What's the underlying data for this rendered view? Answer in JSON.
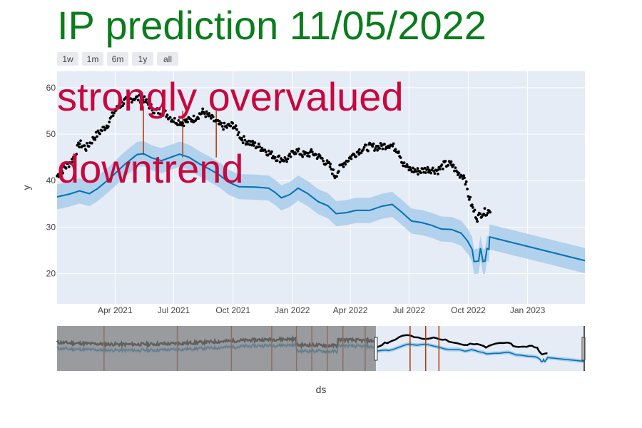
{
  "title": "IP prediction 11/05/2022",
  "annotations": [
    "strongly overvalued",
    "downtrend"
  ],
  "colors": {
    "title": "#0a7c1c",
    "annotation": "#c8073e",
    "plot_bg": "#e5ecf6",
    "grid": "#ffffff",
    "forecast_line": "#0072b2",
    "uncertainty_band": "#a9cdea",
    "actual_points": "#000000",
    "changepoints": "#b03a00",
    "slider_outside": "#808080"
  },
  "range_selector": {
    "buttons": [
      "1w",
      "1m",
      "6m",
      "1y",
      "all"
    ]
  },
  "chart_data": {
    "type": "line",
    "xlabel": "ds",
    "ylabel": "y",
    "x_range": [
      "2021-01-01",
      "2023-03-31"
    ],
    "y_range": [
      13.5,
      63.5
    ],
    "y_ticks": [
      20,
      30,
      40,
      50,
      60
    ],
    "x_ticks": [
      {
        "date": "2021-04-01",
        "label": "Apr 2021"
      },
      {
        "date": "2021-07-01",
        "label": "Jul 2021"
      },
      {
        "date": "2021-10-01",
        "label": "Oct 2021"
      },
      {
        "date": "2022-01-01",
        "label": "Jan 2022"
      },
      {
        "date": "2022-04-01",
        "label": "Apr 2022"
      },
      {
        "date": "2022-07-01",
        "label": "Jul 2022"
      },
      {
        "date": "2022-10-01",
        "label": "Oct 2022"
      },
      {
        "date": "2023-01-01",
        "label": "Jan 2023"
      }
    ],
    "grid": true,
    "series": [
      {
        "kind": "forecast",
        "points": [
          [
            "2021-01-01",
            36.5
          ],
          [
            "2021-01-20",
            37.1
          ],
          [
            "2021-02-05",
            37.8
          ],
          [
            "2021-02-20",
            37.2
          ],
          [
            "2021-03-05",
            38.3
          ],
          [
            "2021-03-25",
            40.6
          ],
          [
            "2021-04-15",
            43.4
          ],
          [
            "2021-05-05",
            45.6
          ],
          [
            "2021-05-15",
            45.8
          ],
          [
            "2021-05-28",
            44.9
          ],
          [
            "2021-06-12",
            44.3
          ],
          [
            "2021-06-28",
            45.1
          ],
          [
            "2021-07-10",
            45.7
          ],
          [
            "2021-07-25",
            45.0
          ],
          [
            "2021-08-10",
            43.6
          ],
          [
            "2021-08-25",
            42.5
          ],
          [
            "2021-09-10",
            41.2
          ],
          [
            "2021-09-25",
            39.6
          ],
          [
            "2021-10-10",
            38.7
          ],
          [
            "2021-11-05",
            38.6
          ],
          [
            "2021-11-25",
            38.4
          ],
          [
            "2021-12-05",
            37.5
          ],
          [
            "2021-12-15",
            36.3
          ],
          [
            "2021-12-28",
            37.0
          ],
          [
            "2022-01-10",
            38.4
          ],
          [
            "2022-01-25",
            37.2
          ],
          [
            "2022-02-10",
            35.5
          ],
          [
            "2022-02-25",
            34.6
          ],
          [
            "2022-03-10",
            32.9
          ],
          [
            "2022-03-25",
            33.1
          ],
          [
            "2022-04-10",
            33.6
          ],
          [
            "2022-05-01",
            33.6
          ],
          [
            "2022-05-20",
            34.5
          ],
          [
            "2022-06-05",
            34.9
          ],
          [
            "2022-06-20",
            33.2
          ],
          [
            "2022-07-05",
            31.3
          ],
          [
            "2022-07-20",
            31.0
          ],
          [
            "2022-08-05",
            30.4
          ],
          [
            "2022-08-20",
            29.6
          ],
          [
            "2022-09-05",
            29.5
          ],
          [
            "2022-09-20",
            28.7
          ],
          [
            "2022-09-30",
            27.0
          ],
          [
            "2022-10-07",
            25.2
          ],
          [
            "2022-10-10",
            22.6
          ],
          [
            "2022-10-17",
            22.7
          ],
          [
            "2022-10-20",
            25.5
          ],
          [
            "2022-10-24",
            22.6
          ],
          [
            "2022-10-27",
            22.7
          ],
          [
            "2022-10-30",
            25.4
          ],
          [
            "2022-11-02",
            25.2
          ],
          [
            "2022-11-03",
            27.9
          ],
          [
            "2023-03-31",
            22.8
          ]
        ],
        "band_halfwidth": 2.7
      },
      {
        "kind": "actual",
        "points": [
          [
            "2021-01-01",
            41.0
          ],
          [
            "2021-01-15",
            43.0
          ],
          [
            "2021-01-25",
            44.5
          ],
          [
            "2021-02-05",
            48.0
          ],
          [
            "2021-02-15",
            47.0
          ],
          [
            "2021-03-01",
            49.5
          ],
          [
            "2021-03-20",
            52.0
          ],
          [
            "2021-04-01",
            55.0
          ],
          [
            "2021-04-15",
            57.0
          ],
          [
            "2021-05-01",
            57.8
          ],
          [
            "2021-05-15",
            57.5
          ],
          [
            "2021-06-01",
            55.0
          ],
          [
            "2021-06-15",
            54.8
          ],
          [
            "2021-07-01",
            53.0
          ],
          [
            "2021-07-15",
            52.5
          ],
          [
            "2021-08-01",
            53.3
          ],
          [
            "2021-08-15",
            54.8
          ],
          [
            "2021-08-25",
            53.8
          ],
          [
            "2021-09-10",
            52.0
          ],
          [
            "2021-09-20",
            51.5
          ],
          [
            "2021-10-01",
            52.0
          ],
          [
            "2021-10-15",
            49.0
          ],
          [
            "2021-11-01",
            47.8
          ],
          [
            "2021-11-15",
            47.0
          ],
          [
            "2021-12-01",
            45.5
          ],
          [
            "2021-12-10",
            44.8
          ],
          [
            "2021-12-25",
            44.5
          ],
          [
            "2022-01-05",
            46.5
          ],
          [
            "2022-01-20",
            45.5
          ],
          [
            "2022-02-01",
            46.0
          ],
          [
            "2022-02-15",
            44.8
          ],
          [
            "2022-03-01",
            43.0
          ],
          [
            "2022-03-08",
            41.0
          ],
          [
            "2022-03-20",
            43.5
          ],
          [
            "2022-04-01",
            45.0
          ],
          [
            "2022-04-15",
            46.5
          ],
          [
            "2022-05-01",
            47.3
          ],
          [
            "2022-05-15",
            47.2
          ],
          [
            "2022-06-01",
            47.8
          ],
          [
            "2022-06-15",
            46.5
          ],
          [
            "2022-06-22",
            43.5
          ],
          [
            "2022-07-01",
            42.5
          ],
          [
            "2022-07-15",
            42.0
          ],
          [
            "2022-08-01",
            42.5
          ],
          [
            "2022-08-15",
            42.2
          ],
          [
            "2022-08-25",
            43.5
          ],
          [
            "2022-09-05",
            43.5
          ],
          [
            "2022-09-15",
            41.5
          ],
          [
            "2022-09-25",
            41.0
          ],
          [
            "2022-10-01",
            37.0
          ],
          [
            "2022-10-08",
            34.0
          ],
          [
            "2022-10-15",
            32.0
          ],
          [
            "2022-10-22",
            33.0
          ],
          [
            "2022-11-01",
            33.5
          ],
          [
            "2022-11-04",
            33.2
          ]
        ]
      }
    ],
    "changepoints": [
      {
        "date": "2021-05-15",
        "from": 56.0,
        "to": 45.5
      },
      {
        "date": "2021-07-15",
        "from": 55.0,
        "to": 45.0
      },
      {
        "date": "2021-09-05",
        "from": 55.0,
        "to": 45.0
      }
    ],
    "range_slider": {
      "selected_range": [
        "2021-01-01",
        "2023-03-31"
      ],
      "full_range_start": "2017-08-01",
      "changepoints": [
        "2018-02-01",
        "2018-11-15",
        "2019-06-15",
        "2019-11-20",
        "2020-02-25",
        "2020-04-25",
        "2020-06-25",
        "2020-08-25",
        "2020-11-20",
        "2021-05-15",
        "2021-07-15",
        "2021-09-05"
      ]
    }
  }
}
